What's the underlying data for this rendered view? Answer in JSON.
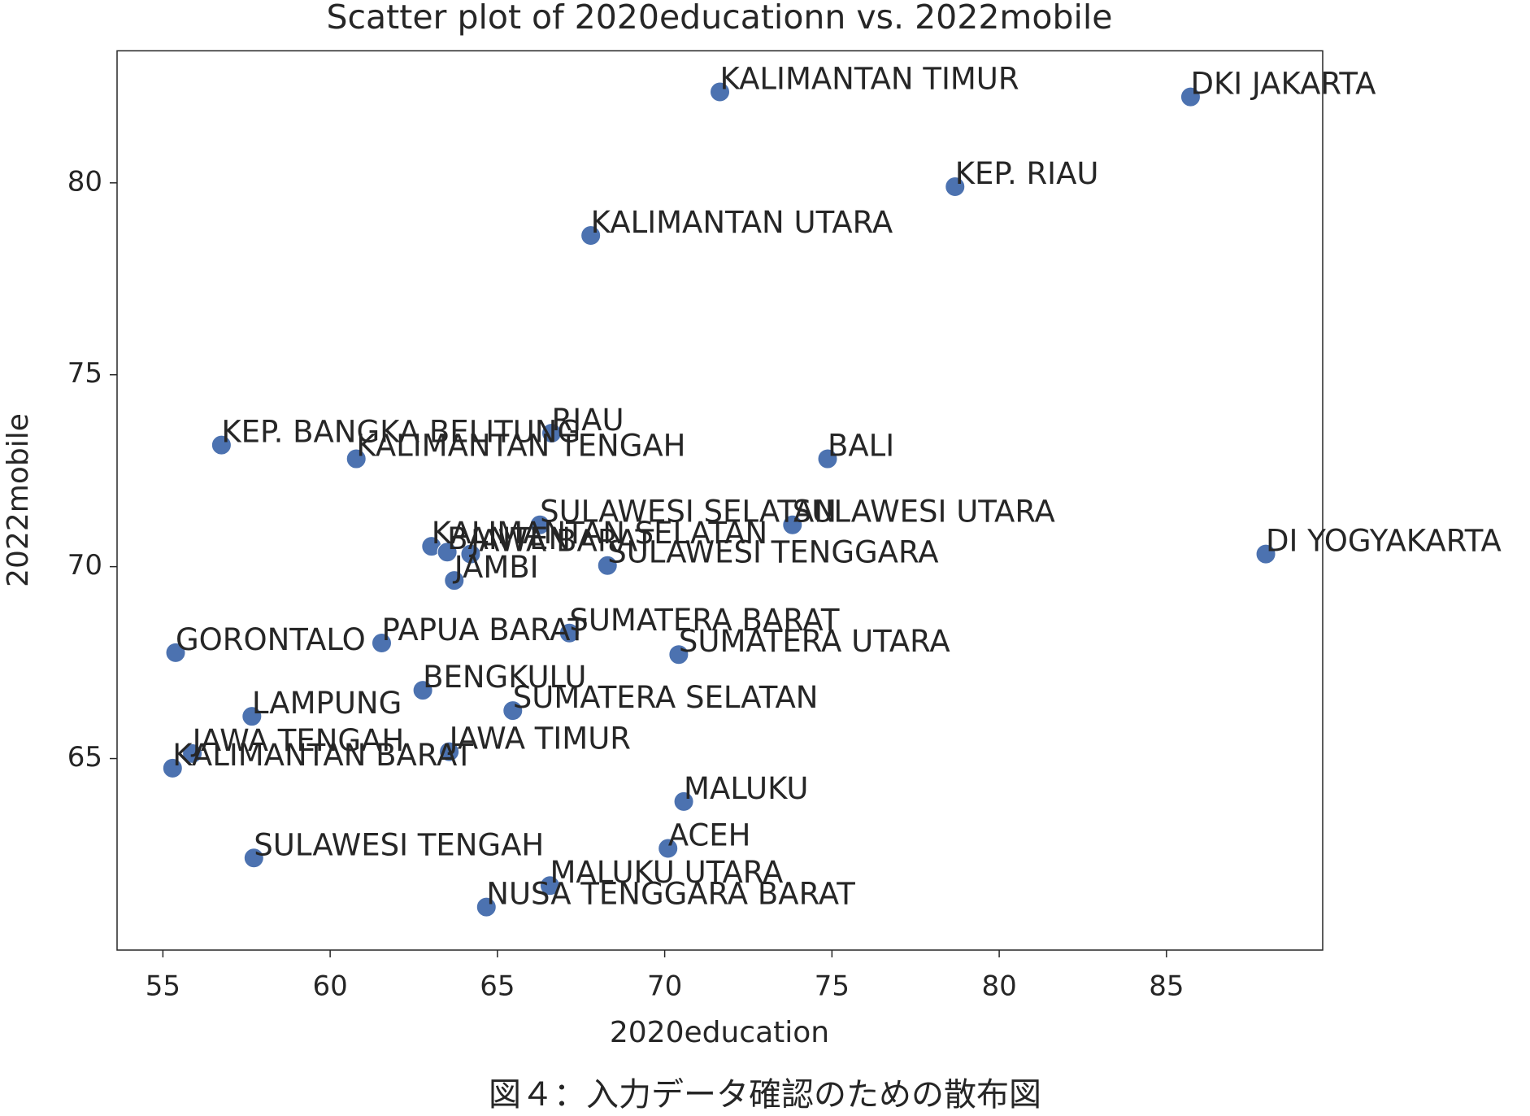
{
  "chart_data": {
    "type": "scatter",
    "title": "Scatter plot of 2020educationn vs. 2022mobile",
    "x_label": "2020education",
    "y_label": "2022mobile",
    "color": "#4c72b0",
    "point_labels": [
      "KALIMANTAN TIMUR",
      "DKI JAKARTA",
      "KEP. RIAU",
      "KALIMANTAN UTARA",
      "KEP. BANGKA BELITUNG",
      "RIAU",
      "KALIMANTAN TENGAH",
      "BALI",
      "SULAWESI SELATAN",
      "SULAWESI UTARA",
      "KALIMANTAN SELATAN",
      "BANTEN",
      "JAWA BARAT",
      "SULAWESI TENGGARA",
      "JAMBI",
      "DI YOGYAKARTA",
      "SUMATERA BARAT",
      "PAPUA BARAT",
      "GORONTALO",
      "SUMATERA UTARA",
      "BENGKULU",
      "SUMATERA SELATAN",
      "LAMPUNG",
      "JAWA TENGAH",
      "JAWA TIMUR",
      "KALIMANTAN BARAT",
      "MALUKU",
      "ACEH",
      "SULAWESI TENGAH",
      "MALUKU UTARA",
      "NUSA TENGGARA BARAT"
    ],
    "x": [
      71.65,
      85.72,
      78.68,
      67.79,
      56.75,
      66.62,
      60.78,
      74.87,
      66.27,
      73.82,
      63.03,
      63.5,
      64.2,
      68.29,
      63.71,
      87.97,
      67.15,
      61.54,
      55.38,
      70.42,
      62.77,
      65.46,
      57.66,
      55.88,
      63.56,
      55.29,
      70.57,
      70.1,
      57.72,
      66.57,
      64.67
    ],
    "values": [
      82.37,
      82.24,
      79.9,
      78.63,
      73.17,
      73.48,
      72.81,
      72.81,
      71.09,
      71.09,
      70.53,
      70.38,
      70.33,
      70.03,
      69.64,
      70.33,
      68.27,
      68.01,
      67.76,
      67.71,
      66.78,
      66.25,
      66.1,
      65.13,
      65.18,
      64.75,
      63.88,
      62.66,
      62.41,
      61.69,
      61.13
    ],
    "xlim": [
      53.63,
      89.67
    ],
    "ylim": [
      60.01,
      83.44
    ],
    "xticks": [
      55,
      60,
      65,
      70,
      75,
      80,
      85
    ],
    "yticks": [
      65,
      70,
      75,
      80
    ]
  },
  "caption": "図４：入力データ確認のための散布図"
}
